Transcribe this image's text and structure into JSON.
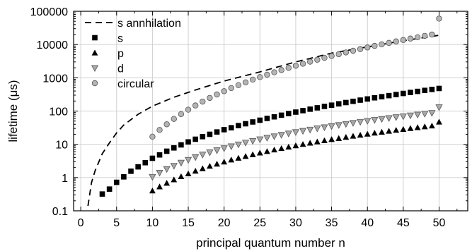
{
  "chart_data": {
    "type": "scatter",
    "title": "",
    "xlabel": "principal quantum number n",
    "ylabel": "lifetime (μs)",
    "xlim": [
      -1,
      54
    ],
    "ylim": [
      0.1,
      100000
    ],
    "yscale": "log",
    "grid": true,
    "legend_position": "top-left",
    "x_ticks": [
      0,
      5,
      10,
      15,
      20,
      25,
      30,
      35,
      40,
      45,
      50
    ],
    "x_tick_labels": [
      "0",
      "5",
      "10",
      "15",
      "20",
      "25",
      "30",
      "35",
      "40",
      "45",
      "50"
    ],
    "y_ticks": [
      0.1,
      1,
      10,
      100,
      1000,
      10000,
      100000
    ],
    "y_tick_labels": [
      "0.1",
      "1",
      "10",
      "100",
      "1000",
      "10000",
      "100000"
    ],
    "series": [
      {
        "name": "s annhilation",
        "style": "dashed-line",
        "color": "#000000",
        "x": [
          1,
          1.5,
          2,
          3,
          4,
          5,
          6,
          8,
          10,
          13,
          16,
          20,
          25,
          30,
          35,
          40,
          45,
          50
        ],
        "y": [
          0.14,
          0.7,
          1.6,
          5.2,
          11,
          22,
          38,
          80,
          140,
          260,
          430,
          800,
          1500,
          3000,
          5500,
          8500,
          13000,
          19000
        ]
      },
      {
        "name": "s",
        "marker": "square",
        "color": "#000000",
        "x": [
          3,
          4,
          5,
          6,
          7,
          8,
          9,
          10,
          11,
          12,
          13,
          14,
          15,
          16,
          17,
          18,
          19,
          20,
          21,
          22,
          23,
          24,
          25,
          26,
          27,
          28,
          29,
          30,
          31,
          32,
          33,
          34,
          35,
          36,
          37,
          38,
          39,
          40,
          41,
          42,
          43,
          44,
          45,
          46,
          47,
          48,
          49,
          50
        ],
        "y": [
          0.32,
          0.45,
          0.72,
          1.05,
          1.55,
          2.1,
          2.8,
          3.8,
          4.8,
          6.2,
          7.8,
          9.6,
          11.8,
          14.2,
          17,
          20,
          23.5,
          27.5,
          31.5,
          36.5,
          41.5,
          47,
          53,
          60,
          67,
          75,
          84,
          93,
          103,
          114,
          125,
          138,
          150,
          165,
          180,
          196,
          213,
          231,
          250,
          270,
          291,
          314,
          338,
          363,
          390,
          418,
          447,
          478
        ]
      },
      {
        "name": "p",
        "marker": "triangle-up",
        "color": "#000000",
        "x": [
          10,
          11,
          12,
          13,
          14,
          15,
          16,
          17,
          18,
          19,
          20,
          21,
          22,
          23,
          24,
          25,
          26,
          27,
          28,
          29,
          30,
          31,
          32,
          33,
          34,
          35,
          36,
          37,
          38,
          39,
          40,
          41,
          42,
          43,
          44,
          45,
          46,
          47,
          48,
          49,
          50
        ],
        "y": [
          0.4,
          0.53,
          0.68,
          0.86,
          1.07,
          1.3,
          1.57,
          1.86,
          2.2,
          2.55,
          2.95,
          3.4,
          3.85,
          4.35,
          4.9,
          5.5,
          6.1,
          6.8,
          7.5,
          8.3,
          9.1,
          10,
          10.9,
          11.9,
          12.9,
          14,
          15.1,
          16.3,
          17.6,
          18.9,
          20.3,
          21.8,
          23.3,
          24.9,
          26.5,
          28.2,
          30,
          31.9,
          33.8,
          35.8,
          47
        ]
      },
      {
        "name": "d",
        "marker": "triangle-down",
        "color": "#a8a8a8",
        "x": [
          10,
          11,
          12,
          13,
          14,
          15,
          16,
          17,
          18,
          19,
          20,
          21,
          22,
          23,
          24,
          25,
          26,
          27,
          28,
          29,
          30,
          31,
          32,
          33,
          34,
          35,
          36,
          37,
          38,
          39,
          40,
          41,
          42,
          43,
          44,
          45,
          46,
          47,
          48,
          49,
          50
        ],
        "y": [
          1.05,
          1.4,
          1.8,
          2.25,
          2.8,
          3.4,
          4.1,
          4.9,
          5.7,
          6.6,
          7.6,
          8.7,
          9.9,
          11.2,
          12.6,
          14.1,
          15.7,
          17.4,
          19.2,
          21.1,
          23.2,
          25.3,
          27.6,
          30,
          32.5,
          35.2,
          38,
          40.9,
          44,
          47.2,
          50.6,
          54,
          57.7,
          61.5,
          65.4,
          69.5,
          73.8,
          78.2,
          82.8,
          87.6,
          130
        ]
      },
      {
        "name": "circular",
        "marker": "circle",
        "color": "#b4b4b4",
        "x": [
          10,
          11,
          12,
          13,
          14,
          15,
          16,
          17,
          18,
          19,
          20,
          21,
          22,
          23,
          24,
          25,
          26,
          27,
          28,
          29,
          30,
          31,
          32,
          33,
          34,
          35,
          36,
          37,
          38,
          39,
          40,
          41,
          42,
          43,
          44,
          45,
          46,
          47,
          48,
          49,
          50
        ],
        "y": [
          17,
          27,
          40,
          58,
          81,
          110,
          147,
          192,
          248,
          315,
          395,
          490,
          600,
          730,
          880,
          1050,
          1240,
          1460,
          1710,
          1990,
          2300,
          2650,
          3050,
          3490,
          3980,
          4520,
          5120,
          5780,
          6500,
          7300,
          8150,
          9100,
          10100,
          11200,
          12400,
          13700,
          15100,
          16600,
          18200,
          20000,
          60000
        ]
      }
    ]
  }
}
